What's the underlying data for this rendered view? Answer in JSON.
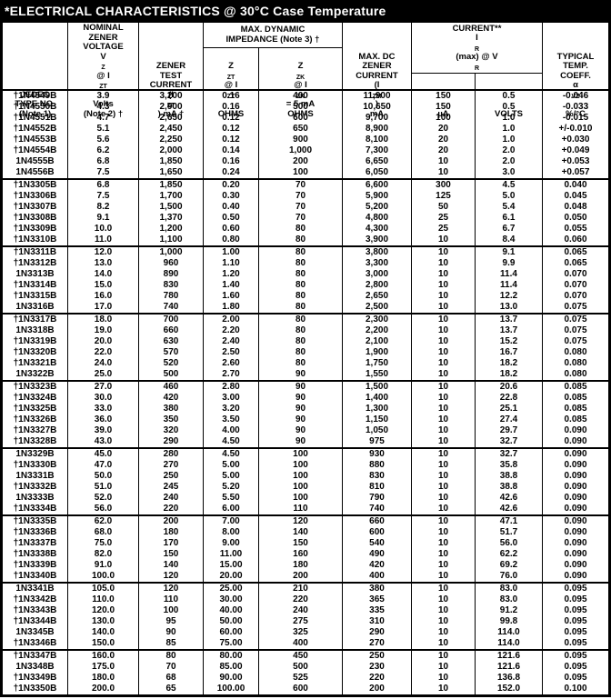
{
  "title": "*ELECTRICAL CHARACTERISTICS @ 30°C Case Temperature",
  "table": {
    "headers": {
      "jedec": "JEDEC<br>TYPE NO.<br>(Note 1)",
      "vz": "NOMINAL<br>ZENER<br>VOLTAGE<br>V<sub>Z</sub> @ I<sub>ZT</sub><br>Volts<br>(Note 2) †",
      "izt": "ZENER<br>TEST<br>CURRENT<br>(I<sub>ZT</sub>) mA †",
      "impedance_group": "MAX. DYNAMIC<br>IMPEDANCE (Note 3) †",
      "zzt": "Z<sub>ZT</sub> @ I<sub>ZT</sub><br>OHMS",
      "zzk": "Z<sub>ZK</sub> @ I<sub>ZK</sub> = 5 mA<br>OHMS",
      "izm": "MAX. DC<br>ZENER<br>CURRENT<br>(I<sub>ZM</sub>)<br>mA",
      "reverse_group": "MAX. REVERSE<br>CURRENT**<br>I<sub>R</sub>(max) @ V<sub>R</sub>",
      "ua": "µA",
      "volts": "VOLTS",
      "temp": "TYPICAL<br>TEMP.<br>COEFF.<br>α<sub>VZ</sub><br>%/°C"
    },
    "groups": [
      [
        [
          "†1N4549B",
          "3.9",
          "3,200",
          "0.16",
          "400",
          "11,900",
          "150",
          "0.5",
          "-0.046"
        ],
        [
          "†1N4550B",
          "4.3",
          "2,900",
          "0.16",
          "500",
          "10,650",
          "150",
          "0.5",
          "-0.033"
        ],
        [
          "†1N4551B",
          "4.7",
          "2,650",
          "0.12",
          "600",
          "9,700",
          "100",
          "1.0",
          "-0.015"
        ],
        [
          "†1N4552B",
          "5.1",
          "2,450",
          "0.12",
          "650",
          "8,900",
          "20",
          "1.0",
          "+/-0.010"
        ],
        [
          "†1N4553B",
          "5.6",
          "2,250",
          "0.12",
          "900",
          "8,100",
          "20",
          "1.0",
          "+0.030"
        ],
        [
          "†1N4554B",
          "6.2",
          "2,000",
          "0.14",
          "1,000",
          "7,300",
          "20",
          "2.0",
          "+0.049"
        ],
        [
          "1N4555B",
          "6.8",
          "1,850",
          "0.16",
          "200",
          "6,650",
          "10",
          "2.0",
          "+0.053"
        ],
        [
          "1N4556B",
          "7.5",
          "1,650",
          "0.24",
          "100",
          "6,050",
          "10",
          "3.0",
          "+0.057"
        ]
      ],
      [
        [
          "†1N3305B",
          "6.8",
          "1,850",
          "0.20",
          "70",
          "6,600",
          "300",
          "4.5",
          "0.040"
        ],
        [
          "†1N3306B",
          "7.5",
          "1,700",
          "0.30",
          "70",
          "5,900",
          "125",
          "5.0",
          "0.045"
        ],
        [
          "†1N3307B",
          "8.2",
          "1,500",
          "0.40",
          "70",
          "5,200",
          "50",
          "5.4",
          "0.048"
        ],
        [
          "†1N3308B",
          "9.1",
          "1,370",
          "0.50",
          "70",
          "4,800",
          "25",
          "6.1",
          "0.050"
        ],
        [
          "†1N3309B",
          "10.0",
          "1,200",
          "0.60",
          "80",
          "4,300",
          "25",
          "6.7",
          "0.055"
        ],
        [
          "†1N3310B",
          "11.0",
          "1,100",
          "0.80",
          "80",
          "3,900",
          "10",
          "8.4",
          "0.060"
        ]
      ],
      [
        [
          "†1N3311B",
          "12.0",
          "1,000",
          "1.00",
          "80",
          "3,800",
          "10",
          "9.1",
          "0.065"
        ],
        [
          "†1N3312B",
          "13.0",
          "960",
          "1.10",
          "80",
          "3,300",
          "10",
          "9.9",
          "0.065"
        ],
        [
          "1N3313B",
          "14.0",
          "890",
          "1.20",
          "80",
          "3,000",
          "10",
          "11.4",
          "0.070"
        ],
        [
          "†1N3314B",
          "15.0",
          "830",
          "1.40",
          "80",
          "2,800",
          "10",
          "11.4",
          "0.070"
        ],
        [
          "†1N3315B",
          "16.0",
          "780",
          "1.60",
          "80",
          "2,650",
          "10",
          "12.2",
          "0.070"
        ],
        [
          "1N3316B",
          "17.0",
          "740",
          "1.80",
          "80",
          "2,500",
          "10",
          "13.0",
          "0.075"
        ]
      ],
      [
        [
          "†1N3317B",
          "18.0",
          "700",
          "2.00",
          "80",
          "2,300",
          "10",
          "13.7",
          "0.075"
        ],
        [
          "1N3318B",
          "19.0",
          "660",
          "2.20",
          "80",
          "2,200",
          "10",
          "13.7",
          "0.075"
        ],
        [
          "†1N3319B",
          "20.0",
          "630",
          "2.40",
          "80",
          "2,100",
          "10",
          "15.2",
          "0.075"
        ],
        [
          "†1N3320B",
          "22.0",
          "570",
          "2.50",
          "80",
          "1,900",
          "10",
          "16.7",
          "0.080"
        ],
        [
          "†1N3321B",
          "24.0",
          "520",
          "2.60",
          "80",
          "1,750",
          "10",
          "18.2",
          "0.080"
        ],
        [
          "1N3322B",
          "25.0",
          "500",
          "2.70",
          "90",
          "1,550",
          "10",
          "18.2",
          "0.080"
        ]
      ],
      [
        [
          "†1N3323B",
          "27.0",
          "460",
          "2.80",
          "90",
          "1,500",
          "10",
          "20.6",
          "0.085"
        ],
        [
          "†1N3324B",
          "30.0",
          "420",
          "3.00",
          "90",
          "1,400",
          "10",
          "22.8",
          "0.085"
        ],
        [
          "†1N3325B",
          "33.0",
          "380",
          "3.20",
          "90",
          "1,300",
          "10",
          "25.1",
          "0.085"
        ],
        [
          "†1N3326B",
          "36.0",
          "350",
          "3.50",
          "90",
          "1,150",
          "10",
          "27.4",
          "0.085"
        ],
        [
          "†1N3327B",
          "39.0",
          "320",
          "4.00",
          "90",
          "1,050",
          "10",
          "29.7",
          "0.090"
        ],
        [
          "†1N3328B",
          "43.0",
          "290",
          "4.50",
          "90",
          "975",
          "10",
          "32.7",
          "0.090"
        ]
      ],
      [
        [
          "1N3329B",
          "45.0",
          "280",
          "4.50",
          "100",
          "930",
          "10",
          "32.7",
          "0.090"
        ],
        [
          "†1N3330B",
          "47.0",
          "270",
          "5.00",
          "100",
          "880",
          "10",
          "35.8",
          "0.090"
        ],
        [
          "1N3331B",
          "50.0",
          "250",
          "5.00",
          "100",
          "830",
          "10",
          "38.8",
          "0.090"
        ],
        [
          "†1N3332B",
          "51.0",
          "245",
          "5.20",
          "100",
          "810",
          "10",
          "38.8",
          "0.090"
        ],
        [
          "1N3333B",
          "52.0",
          "240",
          "5.50",
          "100",
          "790",
          "10",
          "42.6",
          "0.090"
        ],
        [
          "†1N3334B",
          "56.0",
          "220",
          "6.00",
          "110",
          "740",
          "10",
          "42.6",
          "0.090"
        ]
      ],
      [
        [
          "†1N3335B",
          "62.0",
          "200",
          "7.00",
          "120",
          "660",
          "10",
          "47.1",
          "0.090"
        ],
        [
          "†1N3336B",
          "68.0",
          "180",
          "8.00",
          "140",
          "600",
          "10",
          "51.7",
          "0.090"
        ],
        [
          "†1N3337B",
          "75.0",
          "170",
          "9.00",
          "150",
          "540",
          "10",
          "56.0",
          "0.090"
        ],
        [
          "†1N3338B",
          "82.0",
          "150",
          "11.00",
          "160",
          "490",
          "10",
          "62.2",
          "0.090"
        ],
        [
          "†1N3339B",
          "91.0",
          "140",
          "15.00",
          "180",
          "420",
          "10",
          "69.2",
          "0.090"
        ],
        [
          "†1N3340B",
          "100.0",
          "120",
          "20.00",
          "200",
          "400",
          "10",
          "76.0",
          "0.090"
        ]
      ],
      [
        [
          "1N3341B",
          "105.0",
          "120",
          "25.00",
          "210",
          "380",
          "10",
          "83.0",
          "0.095"
        ],
        [
          "†1N3342B",
          "110.0",
          "110",
          "30.00",
          "220",
          "365",
          "10",
          "83.0",
          "0.095"
        ],
        [
          "†1N3343B",
          "120.0",
          "100",
          "40.00",
          "240",
          "335",
          "10",
          "91.2",
          "0.095"
        ],
        [
          "†1N3344B",
          "130.0",
          "95",
          "50.00",
          "275",
          "310",
          "10",
          "99.8",
          "0.095"
        ],
        [
          "1N3345B",
          "140.0",
          "90",
          "60.00",
          "325",
          "290",
          "10",
          "114.0",
          "0.095"
        ],
        [
          "†1N3346B",
          "150.0",
          "85",
          "75.00",
          "400",
          "270",
          "10",
          "114.0",
          "0.095"
        ]
      ],
      [
        [
          "†1N3347B",
          "160.0",
          "80",
          "80.00",
          "450",
          "250",
          "10",
          "121.6",
          "0.095"
        ],
        [
          "1N3348B",
          "175.0",
          "70",
          "85.00",
          "500",
          "230",
          "10",
          "121.6",
          "0.095"
        ],
        [
          "†1N3349B",
          "180.0",
          "68",
          "90.00",
          "525",
          "220",
          "10",
          "136.8",
          "0.095"
        ],
        [
          "†1N3350B",
          "200.0",
          "65",
          "100.00",
          "600",
          "200",
          "10",
          "152.0",
          "0.100"
        ]
      ]
    ]
  }
}
